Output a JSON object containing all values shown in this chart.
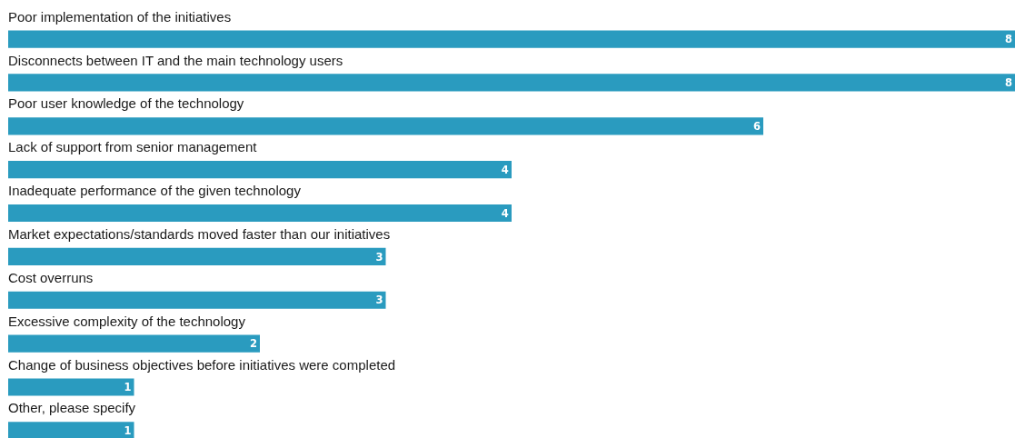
{
  "chart_data": {
    "type": "bar",
    "orientation": "horizontal",
    "data_labels": true,
    "color": "#2a9bbf",
    "categories": [
      "Poor implementation of the initiatives",
      "Disconnects between IT and the main technology users",
      "Poor user knowledge of the technology",
      "Lack of support from senior management",
      "Inadequate performance of the given technology",
      "Market expectations/standards moved faster than our initiatives",
      "Cost overruns",
      "Excessive complexity of the technology",
      "Change of business objectives before initiatives were completed",
      "Other, please specify"
    ],
    "values": [
      8,
      8,
      6,
      4,
      4,
      3,
      3,
      2,
      1,
      1
    ]
  }
}
